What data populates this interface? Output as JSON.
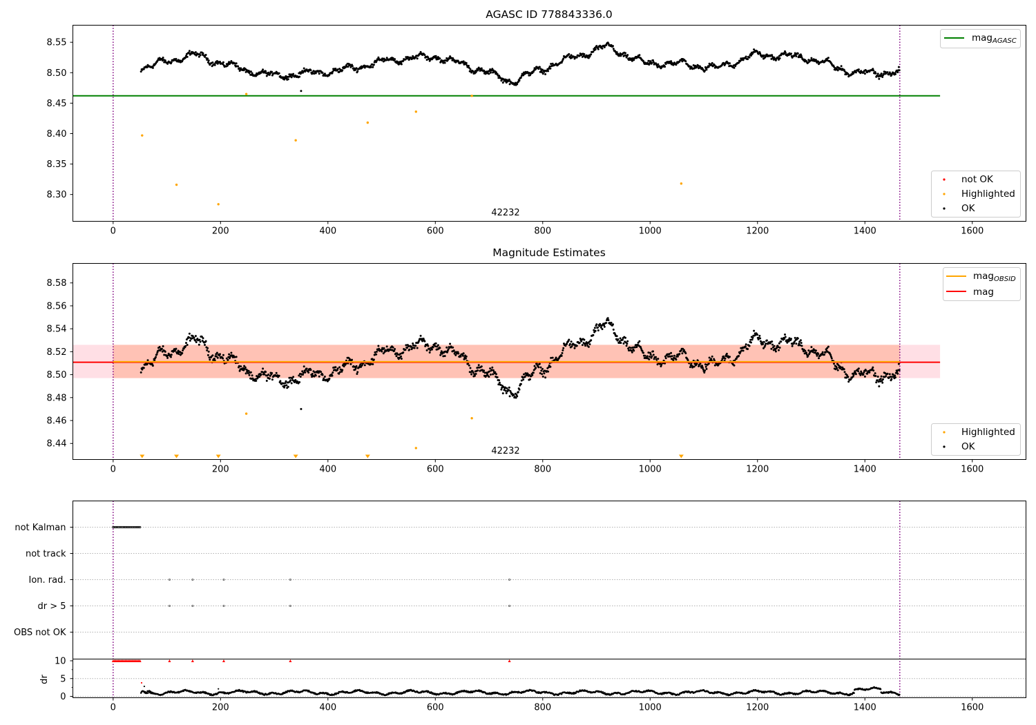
{
  "chart_data": [
    {
      "type": "scatter",
      "title": "AGASC ID 778843336.0",
      "xlim": [
        -75,
        1700
      ],
      "ylim": [
        8.256,
        8.578
      ],
      "xticks": [
        "0",
        "200",
        "400",
        "600",
        "800",
        "1000",
        "1200",
        "1400",
        "1600"
      ],
      "yticks": [
        "8.30",
        "8.35",
        "8.40",
        "8.45",
        "8.50",
        "8.55"
      ],
      "obs_boundaries": [
        0,
        1465
      ],
      "obsid_label": "42232",
      "mag_agasc": 8.462,
      "series_ok": {
        "name": "OK",
        "color": "#000000",
        "x_range": [
          52,
          1465
        ],
        "baseline": [
          [
            52,
            8.507
          ],
          [
            150,
            8.53
          ],
          [
            250,
            8.503
          ],
          [
            300,
            8.495
          ],
          [
            420,
            8.503
          ],
          [
            510,
            8.52
          ],
          [
            600,
            8.527
          ],
          [
            690,
            8.503
          ],
          [
            740,
            8.485
          ],
          [
            840,
            8.52
          ],
          [
            920,
            8.543
          ],
          [
            990,
            8.515
          ],
          [
            1060,
            8.515
          ],
          [
            1120,
            8.507
          ],
          [
            1200,
            8.53
          ],
          [
            1290,
            8.525
          ],
          [
            1380,
            8.5
          ],
          [
            1465,
            8.5
          ]
        ]
      },
      "highlighted": {
        "name": "Highlighted",
        "color": "#ffa500",
        "points": [
          [
            54,
            8.397
          ],
          [
            118,
            8.316
          ],
          [
            196,
            8.284
          ],
          [
            248,
            8.465
          ],
          [
            340,
            8.389
          ],
          [
            474,
            8.418
          ],
          [
            564,
            8.436
          ],
          [
            668,
            8.462
          ],
          [
            1058,
            8.318
          ]
        ]
      },
      "not_ok": {
        "name": "not OK",
        "color": "#ff0000",
        "points": []
      },
      "legend_lines": [
        {
          "label": "mag",
          "sub": "AGASC",
          "color": "#008000"
        }
      ],
      "legend_markers": [
        "not OK",
        "Highlighted",
        "OK"
      ]
    },
    {
      "type": "scatter",
      "title": "Magnitude Estimates",
      "xlim": [
        -75,
        1700
      ],
      "ylim": [
        8.426,
        8.597
      ],
      "xticks": [
        "0",
        "200",
        "400",
        "600",
        "800",
        "1000",
        "1200",
        "1400",
        "1600"
      ],
      "yticks": [
        "8.44",
        "8.46",
        "8.48",
        "8.50",
        "8.52",
        "8.54",
        "8.56",
        "8.58"
      ],
      "obsid_label": "42232",
      "mag_obsid": 8.5113,
      "mag": 8.5108,
      "mag_band": [
        8.497,
        8.526
      ],
      "highlighted_points": [
        [
          248,
          8.466
        ],
        [
          668,
          8.462
        ],
        [
          564,
          8.436
        ]
      ],
      "highlighted_offscale_x": [
        54,
        118,
        196,
        340,
        474,
        1058
      ],
      "legend_lines": [
        {
          "label": "mag",
          "sub": "OBSID",
          "color": "#ffa500"
        },
        {
          "label": "mag",
          "sub": "",
          "color": "#ff0000"
        }
      ],
      "legend_markers": [
        "Highlighted",
        "OK"
      ]
    },
    {
      "type": "scatter",
      "title": "",
      "xlim": [
        -75,
        1700
      ],
      "categories": [
        "not Kalman",
        "not track",
        "Ion. rad.",
        "dr > 5",
        "OBS not OK"
      ],
      "flags": {
        "not Kalman": {
          "x_range": [
            0,
            50
          ]
        },
        "not track": {
          "x": []
        },
        "Ion. rad.": {
          "x": [
            105,
            148,
            206,
            330,
            738
          ]
        },
        "dr > 5": {
          "x": [
            105,
            148,
            206,
            330,
            738
          ]
        },
        "OBS not OK": {
          "x": []
        }
      },
      "dr_ylabel": "dr",
      "dr_yticks": [
        "0",
        "5",
        "10"
      ],
      "dr_ylim": [
        0,
        10
      ],
      "dr_capped_x": [
        105,
        148,
        206,
        330,
        738
      ],
      "dr_cap_value": 10,
      "xticks": [
        "0",
        "200",
        "400",
        "600",
        "800",
        "1000",
        "1200",
        "1400",
        "1600"
      ]
    }
  ]
}
